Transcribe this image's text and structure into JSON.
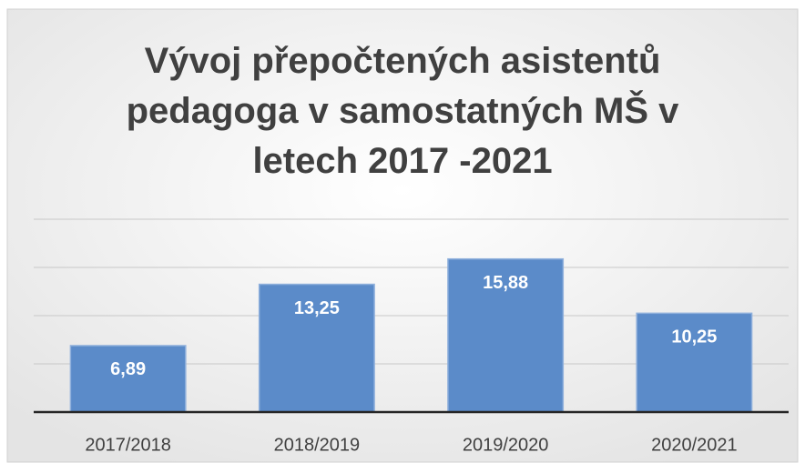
{
  "chart_data": {
    "type": "bar",
    "title": "Vývoj přepočtených asistentů pedagoga v samostatných MŠ v letech 2017 -2021",
    "categories": [
      "2017/2018",
      "2018/2019",
      "2019/2020",
      "2020/2021"
    ],
    "values": [
      6.89,
      13.25,
      15.88,
      10.25
    ],
    "value_labels": [
      "6,89",
      "13,25",
      "15,88",
      "10,25"
    ],
    "color": "#5b8bc9",
    "ylim": [
      0,
      20
    ],
    "yticks": [
      0,
      5,
      10,
      15,
      20
    ],
    "grid": true
  }
}
